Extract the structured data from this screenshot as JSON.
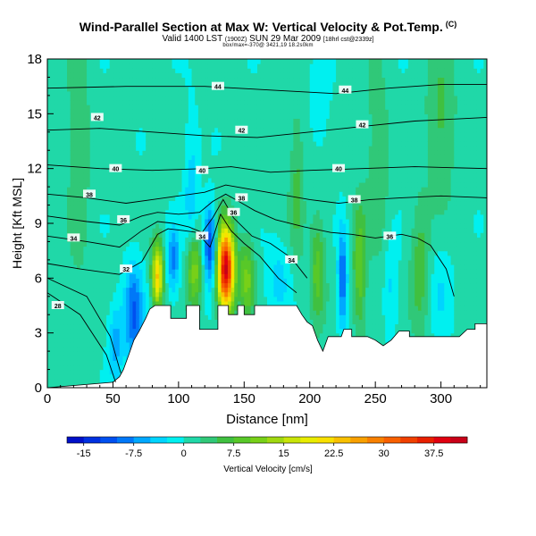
{
  "header": {
    "title": "Wind-Parallel Section at Max W: Vertical Velocity & Pot.Temp.",
    "copyright": "(C)",
    "valid_prefix": "Valid 1400 LST",
    "valid_small1": "(1900Z)",
    "valid_date": "SUN 29 Mar 2009",
    "valid_small2": "[18hrl cst@2339z]",
    "subline": "box/max=-370@ 3421,19 18.2s0km"
  },
  "chart_data": {
    "type": "heatmap",
    "title": "Wind-Parallel Section at Max W: Vertical Velocity & Pot.Temp.",
    "xlabel": "Distance [nm]",
    "ylabel": "Height [Kft MSL]",
    "xlim": [
      0,
      335
    ],
    "ylim": [
      0,
      18
    ],
    "xticks": [
      0,
      50,
      100,
      150,
      200,
      250,
      300
    ],
    "yticks": [
      0,
      3,
      6,
      9,
      12,
      15,
      18
    ],
    "colorbar": {
      "label": "Vertical Velocity [cm/s]",
      "tick_labels": [
        "-15",
        "-7.5",
        "0",
        "7.5",
        "15",
        "22.5",
        "30",
        "37.5"
      ],
      "tick_values": [
        -15,
        -7.5,
        0,
        7.5,
        15,
        22.5,
        30,
        37.5
      ],
      "range": [
        -17.5,
        42.5
      ],
      "bins": [
        {
          "lo": -17.5,
          "hi": -15,
          "color": "#0010c8"
        },
        {
          "lo": -15,
          "hi": -12.5,
          "color": "#0030e0"
        },
        {
          "lo": -12.5,
          "hi": -10,
          "color": "#0050f0"
        },
        {
          "lo": -10,
          "hi": -7.5,
          "color": "#0078f8"
        },
        {
          "lo": -7.5,
          "hi": -5,
          "color": "#00a8ff"
        },
        {
          "lo": -5,
          "hi": -2.5,
          "color": "#00d4ff"
        },
        {
          "lo": -2.5,
          "hi": 0,
          "color": "#00f0f0"
        },
        {
          "lo": 0,
          "hi": 2.5,
          "color": "#20d8a8"
        },
        {
          "lo": 2.5,
          "hi": 5,
          "color": "#30c878"
        },
        {
          "lo": 5,
          "hi": 7.5,
          "color": "#40c040"
        },
        {
          "lo": 7.5,
          "hi": 10,
          "color": "#58c828"
        },
        {
          "lo": 10,
          "hi": 12.5,
          "color": "#78d018"
        },
        {
          "lo": 12.5,
          "hi": 15,
          "color": "#a0d810"
        },
        {
          "lo": 15,
          "hi": 17.5,
          "color": "#c8e408"
        },
        {
          "lo": 17.5,
          "hi": 20,
          "color": "#e8ec00"
        },
        {
          "lo": 20,
          "hi": 22.5,
          "color": "#f8e000"
        },
        {
          "lo": 22.5,
          "hi": 25,
          "color": "#f8c000"
        },
        {
          "lo": 25,
          "hi": 27.5,
          "color": "#f8a000"
        },
        {
          "lo": 27.5,
          "hi": 30,
          "color": "#f88000"
        },
        {
          "lo": 30,
          "hi": 32.5,
          "color": "#f86000"
        },
        {
          "lo": 32.5,
          "hi": 35,
          "color": "#f04000"
        },
        {
          "lo": 35,
          "hi": 37.5,
          "color": "#e82000"
        },
        {
          "lo": 37.5,
          "hi": 40,
          "color": "#e00010"
        },
        {
          "lo": 40,
          "hi": 42.5,
          "color": "#c80018"
        }
      ]
    },
    "terrain": [
      [
        0,
        0
      ],
      [
        50,
        0.3
      ],
      [
        55,
        0.6
      ],
      [
        58,
        1.0
      ],
      [
        62,
        1.8
      ],
      [
        66,
        2.6
      ],
      [
        70,
        3.1
      ],
      [
        75,
        3.8
      ],
      [
        78,
        4.3
      ],
      [
        82,
        4.5
      ],
      [
        94,
        4.5
      ],
      [
        94,
        3.8
      ],
      [
        106,
        3.8
      ],
      [
        106,
        4.5
      ],
      [
        116,
        4.5
      ],
      [
        116,
        3.2
      ],
      [
        130,
        3.2
      ],
      [
        130,
        4.5
      ],
      [
        138,
        4.5
      ],
      [
        138,
        4.0
      ],
      [
        145,
        4.0
      ],
      [
        145,
        4.5
      ],
      [
        150,
        4.5
      ],
      [
        150,
        4.0
      ],
      [
        158,
        4.0
      ],
      [
        158,
        4.5
      ],
      [
        190,
        4.5
      ],
      [
        194,
        4.0
      ],
      [
        198,
        3.6
      ],
      [
        202,
        3.4
      ],
      [
        206,
        2.6
      ],
      [
        210,
        2.0
      ],
      [
        214,
        2.8
      ],
      [
        224,
        2.8
      ],
      [
        226,
        3.2
      ],
      [
        232,
        3.2
      ],
      [
        232,
        2.8
      ],
      [
        244,
        2.8
      ],
      [
        250,
        2.6
      ],
      [
        256,
        2.3
      ],
      [
        262,
        2.6
      ],
      [
        268,
        3.1
      ],
      [
        276,
        3.1
      ],
      [
        276,
        2.8
      ],
      [
        314,
        2.8
      ],
      [
        320,
        3.2
      ],
      [
        326,
        3.2
      ],
      [
        326,
        3.5
      ],
      [
        335,
        3.5
      ]
    ],
    "theta_contours": [
      {
        "level": 28,
        "label": "28",
        "label_x": 8,
        "points": [
          [
            0,
            5.2
          ],
          [
            25,
            4.0
          ],
          [
            45,
            1.8
          ],
          [
            52,
            0.3
          ]
        ]
      },
      {
        "level": 30,
        "label": "",
        "label_x": 0,
        "points": [
          [
            0,
            6.0
          ],
          [
            30,
            5.0
          ],
          [
            48,
            2.8
          ],
          [
            56,
            0.8
          ]
        ]
      },
      {
        "level": 32,
        "label": "32",
        "label_x": 58,
        "points": [
          [
            0,
            6.8
          ],
          [
            25,
            6.5
          ],
          [
            55,
            6.2
          ],
          [
            72,
            6.9
          ],
          [
            84,
            8.4
          ],
          [
            92,
            8.7
          ],
          [
            104,
            8.6
          ],
          [
            114,
            8.5
          ],
          [
            124,
            7.7
          ],
          [
            132,
            9.5
          ],
          [
            140,
            8.6
          ],
          [
            150,
            7.9
          ],
          [
            162,
            7.2
          ],
          [
            176,
            6.0
          ],
          [
            190,
            5.2
          ]
        ]
      },
      {
        "level": 34,
        "label": "34",
        "label_x": 20,
        "points": [
          [
            0,
            8.3
          ],
          [
            30,
            8.0
          ],
          [
            55,
            7.7
          ],
          [
            72,
            8.6
          ],
          [
            84,
            9.1
          ],
          [
            96,
            9.0
          ],
          [
            108,
            8.8
          ],
          [
            118,
            8.5
          ],
          [
            126,
            9.3
          ],
          [
            134,
            10.3
          ],
          [
            142,
            9.3
          ],
          [
            156,
            8.3
          ],
          [
            170,
            7.9
          ],
          [
            186,
            7.1
          ],
          [
            198,
            6.0
          ]
        ]
      },
      {
        "level": 36,
        "label": "36",
        "label_x": 58,
        "points": [
          [
            0,
            9.4
          ],
          [
            30,
            9.1
          ],
          [
            55,
            8.9
          ],
          [
            72,
            9.4
          ],
          [
            84,
            9.6
          ],
          [
            100,
            9.5
          ],
          [
            116,
            9.6
          ],
          [
            126,
            10.2
          ],
          [
            136,
            10.6
          ],
          [
            146,
            10.2
          ],
          [
            158,
            9.7
          ],
          [
            174,
            9.2
          ],
          [
            196,
            8.8
          ],
          [
            216,
            8.5
          ],
          [
            232,
            8.4
          ],
          [
            250,
            8.2
          ],
          [
            270,
            8.4
          ],
          [
            282,
            8.2
          ],
          [
            292,
            7.8
          ],
          [
            304,
            6.5
          ],
          [
            310,
            5.0
          ]
        ]
      },
      {
        "level": 38,
        "label": "38",
        "label_x": 32,
        "points": [
          [
            0,
            10.6
          ],
          [
            30,
            10.4
          ],
          [
            60,
            10.1
          ],
          [
            80,
            10.3
          ],
          [
            100,
            10.5
          ],
          [
            120,
            10.7
          ],
          [
            136,
            11.1
          ],
          [
            152,
            10.9
          ],
          [
            176,
            10.6
          ],
          [
            200,
            10.3
          ],
          [
            222,
            10.1
          ],
          [
            246,
            10.3
          ],
          [
            270,
            10.4
          ],
          [
            300,
            10.5
          ],
          [
            335,
            10.4
          ]
        ]
      },
      {
        "level": 40,
        "label": "40",
        "label_x": 50,
        "points": [
          [
            0,
            12.2
          ],
          [
            40,
            12.0
          ],
          [
            80,
            11.9
          ],
          [
            120,
            12.0
          ],
          [
            140,
            12.1
          ],
          [
            170,
            11.8
          ],
          [
            200,
            11.9
          ],
          [
            240,
            12.0
          ],
          [
            280,
            12.1
          ],
          [
            335,
            12.0
          ]
        ]
      },
      {
        "level": 42,
        "label": "42",
        "label_x": 150,
        "points": [
          [
            0,
            14.1
          ],
          [
            40,
            14.2
          ],
          [
            80,
            14.0
          ],
          [
            120,
            13.8
          ],
          [
            160,
            13.7
          ],
          [
            200,
            14.0
          ],
          [
            240,
            14.3
          ],
          [
            280,
            14.6
          ],
          [
            335,
            14.8
          ]
        ]
      },
      {
        "level": 44,
        "label": "44",
        "label_x": 130,
        "points": [
          [
            0,
            16.4
          ],
          [
            60,
            16.5
          ],
          [
            120,
            16.5
          ],
          [
            170,
            16.3
          ],
          [
            220,
            16.1
          ],
          [
            260,
            16.4
          ],
          [
            300,
            16.6
          ],
          [
            335,
            16.6
          ]
        ]
      }
    ],
    "contour_labels": [
      {
        "text": "28",
        "x": 8,
        "y": 4.5
      },
      {
        "text": "32",
        "x": 60,
        "y": 6.5
      },
      {
        "text": "34",
        "x": 20,
        "y": 8.2
      },
      {
        "text": "34",
        "x": 118,
        "y": 8.3
      },
      {
        "text": "34",
        "x": 186,
        "y": 7.0
      },
      {
        "text": "36",
        "x": 58,
        "y": 9.2
      },
      {
        "text": "36",
        "x": 142,
        "y": 9.6
      },
      {
        "text": "36",
        "x": 261,
        "y": 8.3
      },
      {
        "text": "38",
        "x": 32,
        "y": 10.6
      },
      {
        "text": "38",
        "x": 148,
        "y": 10.4
      },
      {
        "text": "38",
        "x": 234,
        "y": 10.3
      },
      {
        "text": "40",
        "x": 52,
        "y": 12.0
      },
      {
        "text": "40",
        "x": 118,
        "y": 11.9
      },
      {
        "text": "40",
        "x": 222,
        "y": 12.0
      },
      {
        "text": "42",
        "x": 38,
        "y": 14.8
      },
      {
        "text": "42",
        "x": 148,
        "y": 14.1
      },
      {
        "text": "42",
        "x": 240,
        "y": 14.4
      },
      {
        "text": "44",
        "x": 130,
        "y": 16.5
      },
      {
        "text": "44",
        "x": 227,
        "y": 16.3
      }
    ],
    "vertical_velocity_features": [
      {
        "x": 136,
        "y": 6.5,
        "sx": 4.5,
        "sy": 1.6,
        "w": 40
      },
      {
        "x": 84,
        "y": 6.2,
        "sx": 3.0,
        "sy": 1.2,
        "w": 22
      },
      {
        "x": 112,
        "y": 6.5,
        "sx": 4.0,
        "sy": 1.5,
        "w": 12
      },
      {
        "x": 152,
        "y": 6.0,
        "sx": 4.0,
        "sy": 1.5,
        "w": 10
      },
      {
        "x": 124,
        "y": 7.8,
        "sx": 3.5,
        "sy": 1.5,
        "w": -14
      },
      {
        "x": 96,
        "y": 7.0,
        "sx": 3.5,
        "sy": 1.3,
        "w": -9
      },
      {
        "x": 66,
        "y": 4.0,
        "sx": 5.0,
        "sy": 2.0,
        "w": -11
      },
      {
        "x": 52,
        "y": 2.5,
        "sx": 4.0,
        "sy": 1.5,
        "w": -7
      },
      {
        "x": 225,
        "y": 6.0,
        "sx": 2.5,
        "sy": 2.0,
        "w": -11
      },
      {
        "x": 206,
        "y": 6.5,
        "sx": 4.0,
        "sy": 2.0,
        "w": 8
      },
      {
        "x": 238,
        "y": 6.5,
        "sx": 3.5,
        "sy": 2.5,
        "w": 9
      },
      {
        "x": 262,
        "y": 5.5,
        "sx": 4.0,
        "sy": 2.0,
        "w": -4
      },
      {
        "x": 284,
        "y": 6.5,
        "sx": 5.0,
        "sy": 2.5,
        "w": 6
      },
      {
        "x": 300,
        "y": 5.5,
        "sx": 6.0,
        "sy": 2.0,
        "w": -3
      },
      {
        "x": 176,
        "y": 6.0,
        "sx": 7.0,
        "sy": 1.5,
        "w": -4
      },
      {
        "x": 110,
        "y": 10.5,
        "sx": 4.0,
        "sy": 3.0,
        "w": -5
      },
      {
        "x": 190,
        "y": 11.0,
        "sx": 4.0,
        "sy": 3.0,
        "w": 5
      },
      {
        "x": 252,
        "y": 12.5,
        "sx": 6.0,
        "sy": 4.0,
        "w": 4
      },
      {
        "x": 24,
        "y": 13.0,
        "sx": 6.0,
        "sy": 5.0,
        "w": 4
      },
      {
        "x": 208,
        "y": 15.5,
        "sx": 5.0,
        "sy": 2.0,
        "w": -3
      },
      {
        "x": 300,
        "y": 14.5,
        "sx": 8.0,
        "sy": 3.0,
        "w": 5
      }
    ]
  }
}
